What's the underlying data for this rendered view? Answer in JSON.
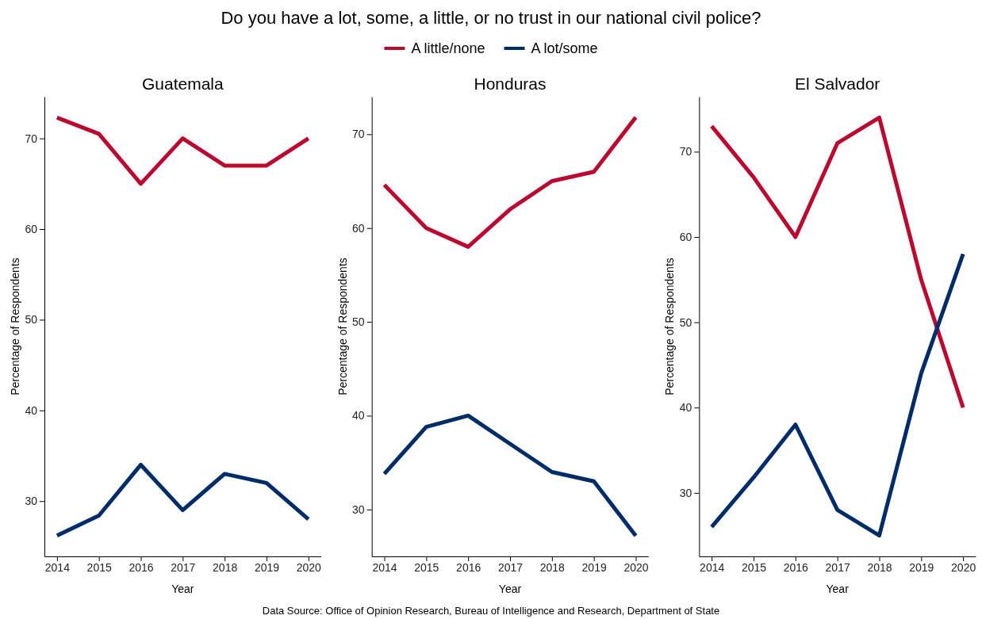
{
  "chart_data": [
    {
      "type": "line",
      "title": "Guatemala",
      "xlabel": "Year",
      "ylabel": "Percentage of Respondents",
      "x": [
        2014,
        2015,
        2016,
        2017,
        2018,
        2019,
        2020
      ],
      "xlim": [
        2013.7,
        2020.3
      ],
      "xticks": [
        2014,
        2015,
        2016,
        2017,
        2018,
        2019,
        2020
      ],
      "ylim": [
        23.9,
        74.6
      ],
      "yticks": [
        30,
        40,
        50,
        60,
        70
      ],
      "grid": false,
      "legend": "top",
      "line_style": "solid",
      "series": [
        {
          "name": "A little/none",
          "color": "#bb0a30",
          "values": [
            72.3,
            70.5,
            65,
            70,
            67,
            67,
            70
          ]
        },
        {
          "name": "A lot/some",
          "color": "#002d69",
          "values": [
            26.2,
            28.4,
            34,
            29,
            33,
            32,
            28
          ]
        }
      ]
    },
    {
      "type": "line",
      "title": "Honduras",
      "xlabel": "Year",
      "ylabel": "Percentage of Respondents",
      "x": [
        2014,
        2015,
        2016,
        2017,
        2018,
        2019,
        2020
      ],
      "xlim": [
        2013.7,
        2020.3
      ],
      "xticks": [
        2014,
        2015,
        2016,
        2017,
        2018,
        2019,
        2020
      ],
      "ylim": [
        25,
        74
      ],
      "yticks": [
        30,
        40,
        50,
        60,
        70
      ],
      "grid": false,
      "line_style": "solid",
      "series": [
        {
          "color": "#bb0a30",
          "values": [
            64.6,
            60,
            58,
            62,
            65,
            66,
            71.8
          ]
        },
        {
          "color": "#002d69",
          "values": [
            33.8,
            38.8,
            40,
            37,
            34,
            33,
            27.2
          ]
        }
      ]
    },
    {
      "type": "line",
      "title": "El Salvador",
      "xlabel": "Year",
      "ylabel": "Percentage of Respondents",
      "x": [
        2014,
        2015,
        2016,
        2017,
        2018,
        2019,
        2020
      ],
      "xlim": [
        2013.7,
        2020.3
      ],
      "xticks": [
        2014,
        2015,
        2016,
        2017,
        2018,
        2019,
        2020
      ],
      "ylim": [
        22.55,
        76.45
      ],
      "yticks": [
        30,
        40,
        50,
        60,
        70
      ],
      "grid": false,
      "line_style": "solid",
      "series": [
        {
          "color": "#bb0a30",
          "values": [
            73,
            67,
            60,
            71,
            74,
            55,
            40
          ]
        },
        {
          "color": "#002d69",
          "values": [
            26,
            31.8,
            38,
            28,
            25,
            44,
            58
          ]
        }
      ],
      "annotations": [
        "Do you have a lot, some, a little, or no trust in our national civil police?",
        "Data Source: Office of Opinion Research, Bureau of Intelligence and Research, Department of State"
      ]
    }
  ]
}
